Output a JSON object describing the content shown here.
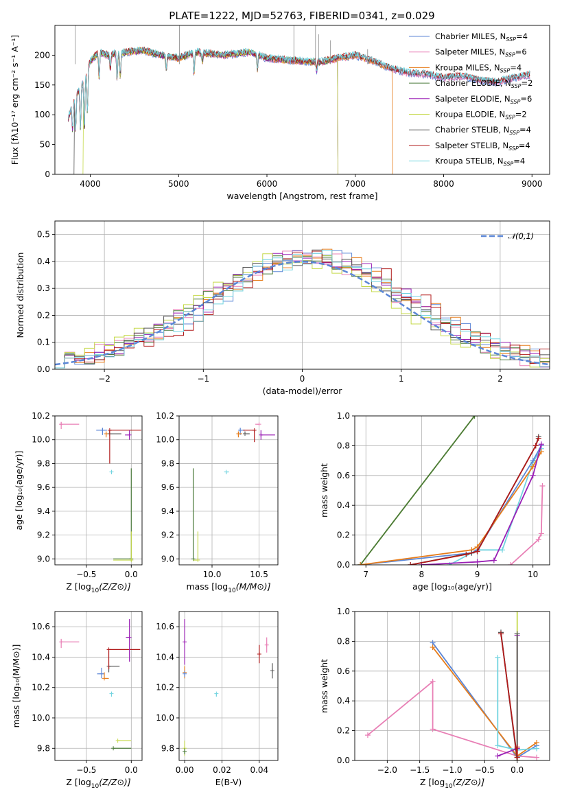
{
  "figure": {
    "title": "PLATE=1222, MJD=52763, FIBERID=0341, z=0.029"
  },
  "colors": {
    "Chabrier MILES": "#5b86d6",
    "Salpeter MILES": "#e87fb5",
    "Kroupa MILES": "#e67d1c",
    "Chabrier ELODIE": "#4a7a3a",
    "Salpeter ELODIE": "#9a1fb5",
    "Kroupa ELODIE": "#c5d94a",
    "Chabrier STELIB": "#555555",
    "Salpeter STELIB": "#b01a1a",
    "Kroupa STELIB": "#72d4e0"
  },
  "legend_spectrum": [
    {
      "model": "Chabrier MILES",
      "pre": "Chabrier MILES, N",
      "sub": "SSP",
      "post": "=4"
    },
    {
      "model": "Salpeter MILES",
      "pre": "Salpeter MILES, N",
      "sub": "SSP",
      "post": "=6"
    },
    {
      "model": "Kroupa MILES",
      "pre": "Kroupa MILES, N",
      "sub": "SSP",
      "post": "=4"
    },
    {
      "model": "Chabrier ELODIE",
      "pre": "Chabrier ELODIE, N",
      "sub": "SSP",
      "post": "=2"
    },
    {
      "model": "Salpeter ELODIE",
      "pre": "Salpeter ELODIE, N",
      "sub": "SSP",
      "post": "=6"
    },
    {
      "model": "Kroupa ELODIE",
      "pre": "Kroupa ELODIE, N",
      "sub": "SSP",
      "post": "=2"
    },
    {
      "model": "Chabrier STELIB",
      "pre": "Chabrier STELIB, N",
      "sub": "SSP",
      "post": "=4"
    },
    {
      "model": "Salpeter STELIB",
      "pre": "Salpeter STELIB, N",
      "sub": "SSP",
      "post": "=4"
    },
    {
      "model": "Kroupa STELIB",
      "pre": "Kroupa STELIB, N",
      "sub": "SSP",
      "post": "=4"
    }
  ],
  "chart_data": [
    {
      "id": "spectrum",
      "type": "line",
      "xlabel": "wavelength [Angstrom, rest frame]",
      "ylabel": "Flux [fλ10⁻¹⁷ erg cm⁻² s⁻¹ A⁻¹]",
      "xlim": [
        3600,
        9200
      ],
      "ylim": [
        0,
        250
      ],
      "xticks": [
        4000,
        5000,
        6000,
        7000,
        8000,
        9000
      ],
      "yticks": [
        0,
        50,
        100,
        150,
        200
      ],
      "grid": false,
      "legend": "upper-right",
      "continuum_x": [
        3750,
        3800,
        3850,
        3900,
        3950,
        4000,
        4100,
        4200,
        4400,
        4600,
        4800,
        5000,
        5200,
        5500,
        5800,
        6000,
        6200,
        6400,
        6600,
        6800,
        7000,
        7200,
        7400,
        7600,
        7800,
        8000,
        8200,
        8400,
        8600,
        8800,
        9000
      ],
      "continuum_y": [
        95,
        115,
        135,
        150,
        165,
        190,
        205,
        200,
        205,
        208,
        200,
        195,
        205,
        200,
        205,
        195,
        192,
        190,
        188,
        195,
        200,
        190,
        178,
        170,
        168,
        162,
        165,
        158,
        155,
        162,
        168
      ],
      "absorption_lines": [
        {
          "wavelength": 3800,
          "depth": 40
        },
        {
          "wavelength": 3835,
          "depth": 55
        },
        {
          "wavelength": 3889,
          "depth": 70
        },
        {
          "wavelength": 3933,
          "depth": 90
        },
        {
          "wavelength": 3968,
          "depth": 70
        },
        {
          "wavelength": 4101,
          "depth": 45
        },
        {
          "wavelength": 4227,
          "depth": 25
        },
        {
          "wavelength": 4304,
          "depth": 45
        },
        {
          "wavelength": 4340,
          "depth": 40
        },
        {
          "wavelength": 4861,
          "depth": 25
        },
        {
          "wavelength": 5175,
          "depth": 35
        },
        {
          "wavelength": 5270,
          "depth": 15
        },
        {
          "wavelength": 5893,
          "depth": 25
        },
        {
          "wavelength": 6563,
          "depth": 15
        }
      ],
      "truncations": [
        {
          "model": "Chabrier STELIB",
          "from": 3750,
          "to": 3820
        },
        {
          "model": "Kroupa ELODIE",
          "from": 3750,
          "to": 3920
        },
        {
          "model": "Kroupa ELODIE",
          "from": 6800,
          "to": 9200
        },
        {
          "model": "Salpeter ELODIE",
          "from": 6800,
          "to": 9200
        },
        {
          "model": "Chabrier ELODIE",
          "from": 6800,
          "to": 9200
        },
        {
          "model": "Kroupa MILES",
          "from": 7420,
          "to": 9200
        }
      ]
    },
    {
      "id": "residuals",
      "type": "histogram",
      "xlabel": "(data-model)/error",
      "ylabel": "Normed distribution",
      "xlim": [
        -2.5,
        2.5
      ],
      "ylim": [
        0,
        0.55
      ],
      "xticks": [
        -2,
        -1,
        0,
        1,
        2
      ],
      "yticks": [
        0.0,
        0.1,
        0.2,
        0.3,
        0.4,
        0.5
      ],
      "grid": true,
      "legend": "upper-right",
      "bins": 50,
      "reference_curve": {
        "name": "𝒩(0,1)",
        "mean": 0,
        "sigma": 1,
        "style": "dashed",
        "color": "#5b86d6"
      },
      "model_shifts": {
        "Chabrier MILES": 0.15,
        "Salpeter MILES": 0.0,
        "Kroupa MILES": 0.15,
        "Chabrier ELODIE": 0.05,
        "Salpeter ELODIE": 0.1,
        "Kroupa ELODIE": -0.1,
        "Chabrier STELIB": 0.0,
        "Salpeter STELIB": 0.2,
        "Kroupa STELIB": 0.15
      }
    },
    {
      "id": "age_vs_Z",
      "type": "errorbar",
      "xlabel_pre": "Z [log",
      "xlabel_sub": "10",
      "xlabel_post": "(Z/Z⊙)]",
      "ylabel": "age  [log₁₀(age/yr)]",
      "xlim": [
        -0.85,
        0.12
      ],
      "ylim": [
        8.95,
        10.2
      ],
      "xticks": [
        -0.5,
        0.0
      ],
      "yticks": [
        9.0,
        9.2,
        9.4,
        9.6,
        9.8,
        10.0,
        10.2
      ],
      "grid": true,
      "points": [
        {
          "model": "Salpeter MILES",
          "x": -0.78,
          "y": 10.13,
          "xl": 0.02,
          "xh": 0.2,
          "yl": 0.04,
          "yh": 0.02
        },
        {
          "model": "Chabrier MILES",
          "x": -0.32,
          "y": 10.08,
          "xl": 0.07,
          "xh": 0.05,
          "yl": 0.04,
          "yh": 0.02
        },
        {
          "model": "Kroupa MILES",
          "x": -0.28,
          "y": 10.05,
          "xl": 0.0,
          "xh": 0.04,
          "yl": 0.03,
          "yh": 0.02
        },
        {
          "model": "Chabrier STELIB",
          "x": -0.24,
          "y": 10.05,
          "xl": 0.0,
          "xh": 0.13,
          "yl": 0.0,
          "yh": 0.03
        },
        {
          "model": "Salpeter STELIB",
          "x": -0.24,
          "y": 10.08,
          "xl": 0.0,
          "xh": 0.35,
          "yl": 0.28,
          "yh": 0.0
        },
        {
          "model": "Salpeter ELODIE",
          "x": -0.02,
          "y": 10.04,
          "xl": 0.05,
          "xh": 0.0,
          "yl": 0.04,
          "yh": 0.04
        },
        {
          "model": "Kroupa STELIB",
          "x": -0.22,
          "y": 9.73,
          "xl": 0.0,
          "xh": 0.0,
          "yl": 0.02,
          "yh": 0.0
        },
        {
          "model": "Chabrier ELODIE",
          "x": 0.0,
          "y": 9.0,
          "xl": 0.2,
          "xh": 0.0,
          "yl": 0.0,
          "yh": 0.76
        },
        {
          "model": "Kroupa ELODIE",
          "x": 0.0,
          "y": 8.99,
          "xl": 0.2,
          "xh": 0.0,
          "yl": 0.0,
          "yh": 0.24
        }
      ]
    },
    {
      "id": "age_vs_mass",
      "type": "errorbar",
      "xlabel_pre": "mass [log",
      "xlabel_sub": "10",
      "xlabel_post": "(M/M⊙)]",
      "xlim": [
        9.65,
        10.7
      ],
      "ylim": [
        8.95,
        10.2
      ],
      "xticks": [
        10.0,
        10.5
      ],
      "yticks": [
        9.0,
        9.2,
        9.4,
        9.6,
        9.8,
        10.0,
        10.2
      ],
      "grid": true,
      "points": [
        {
          "model": "Chabrier MILES",
          "x": 10.3,
          "y": 10.08,
          "xl": 0.02,
          "xh": 0.05,
          "yl": 0.04,
          "yh": 0.02
        },
        {
          "model": "Kroupa MILES",
          "x": 10.28,
          "y": 10.05,
          "xl": 0.0,
          "xh": 0.04,
          "yl": 0.03,
          "yh": 0.02
        },
        {
          "model": "Chabrier STELIB",
          "x": 10.35,
          "y": 10.05,
          "xl": 0.0,
          "xh": 0.05,
          "yl": 0.0,
          "yh": 0.02
        },
        {
          "model": "Salpeter STELIB",
          "x": 10.45,
          "y": 10.08,
          "xl": 0.12,
          "xh": 0.0,
          "yl": 0.1,
          "yh": 0.0
        },
        {
          "model": "Salpeter MILES",
          "x": 10.5,
          "y": 10.13,
          "xl": 0.04,
          "xh": 0.0,
          "yl": 0.0,
          "yh": 0.0
        },
        {
          "model": "Salpeter ELODIE",
          "x": 10.52,
          "y": 10.04,
          "xl": 0.0,
          "xh": 0.15,
          "yl": 0.04,
          "yh": 0.04
        },
        {
          "model": "Kroupa STELIB",
          "x": 10.15,
          "y": 9.73,
          "xl": 0.0,
          "xh": 0.03,
          "yl": 0.02,
          "yh": 0.0
        },
        {
          "model": "Chabrier ELODIE",
          "x": 9.8,
          "y": 9.0,
          "xl": 0.0,
          "xh": 0.0,
          "yl": 0.0,
          "yh": 0.76
        },
        {
          "model": "Kroupa ELODIE",
          "x": 9.85,
          "y": 8.99,
          "xl": 0.05,
          "xh": 0.0,
          "yl": 0.0,
          "yh": 0.24
        }
      ]
    },
    {
      "id": "weight_vs_age",
      "type": "line",
      "xlabel": "age  [log₁₀(age/yr)]",
      "ylabel": "mass weight",
      "xlim": [
        6.8,
        10.3
      ],
      "ylim": [
        0,
        1
      ],
      "xticks": [
        7,
        8,
        9,
        10
      ],
      "yticks": [
        0.0,
        0.2,
        0.4,
        0.6,
        0.8,
        1.0
      ],
      "grid": true,
      "series": [
        {
          "model": "Kroupa ELODIE",
          "x": [
            6.9,
            8.95
          ],
          "y": [
            0.0,
            1.0
          ]
        },
        {
          "model": "Chabrier ELODIE",
          "x": [
            6.9,
            8.95
          ],
          "y": [
            0.0,
            1.0
          ]
        },
        {
          "model": "Salpeter MILES",
          "x": [
            9.6,
            10.1,
            10.15,
            10.17
          ],
          "y": [
            0.0,
            0.17,
            0.21,
            0.53
          ]
        },
        {
          "model": "Kroupa STELIB",
          "x": [
            8.5,
            9.0,
            9.45,
            10.0,
            10.15
          ],
          "y": [
            0.0,
            0.1,
            0.1,
            0.69,
            0.78
          ]
        },
        {
          "model": "Chabrier MILES",
          "x": [
            6.9,
            8.9,
            9.0,
            10.0,
            10.15
          ],
          "y": [
            0.0,
            0.08,
            0.1,
            0.7,
            0.8
          ]
        },
        {
          "model": "Kroupa MILES",
          "x": [
            6.9,
            8.9,
            9.0,
            10.0,
            10.15
          ],
          "y": [
            0.0,
            0.1,
            0.12,
            0.66,
            0.76
          ]
        },
        {
          "model": "Salpeter ELODIE",
          "x": [
            8.0,
            9.0,
            9.3,
            10.0,
            10.15
          ],
          "y": [
            0.0,
            0.02,
            0.03,
            0.6,
            0.81
          ]
        },
        {
          "model": "Chabrier STELIB",
          "x": [
            7.8,
            8.9,
            9.0,
            10.05,
            10.1
          ],
          "y": [
            0.0,
            0.08,
            0.09,
            0.8,
            0.86
          ]
        },
        {
          "model": "Salpeter STELIB",
          "x": [
            7.8,
            8.8,
            9.0,
            10.05,
            10.1
          ],
          "y": [
            0.0,
            0.07,
            0.09,
            0.8,
            0.85
          ]
        }
      ]
    },
    {
      "id": "mass_vs_Z",
      "type": "errorbar",
      "xlabel_pre": "Z [log",
      "xlabel_sub": "10",
      "xlabel_post": "(Z/Z⊙)]",
      "ylabel": "mass [log₁₀(M/M⊙)]",
      "xlim": [
        -0.85,
        0.12
      ],
      "ylim": [
        9.72,
        10.7
      ],
      "xticks": [
        -0.5,
        0.0
      ],
      "yticks": [
        9.8,
        10.0,
        10.2,
        10.4,
        10.6
      ],
      "grid": true,
      "points": [
        {
          "model": "Salpeter MILES",
          "x": -0.78,
          "y": 10.5,
          "xl": 0.0,
          "xh": 0.2,
          "yl": 0.04,
          "yh": 0.02
        },
        {
          "model": "Chabrier MILES",
          "x": -0.33,
          "y": 10.29,
          "xl": 0.05,
          "xh": 0.03,
          "yl": 0.03,
          "yh": 0.04
        },
        {
          "model": "Kroupa MILES",
          "x": -0.3,
          "y": 10.26,
          "xl": 0.0,
          "xh": 0.05,
          "yl": 0.0,
          "yh": 0.04
        },
        {
          "model": "Chabrier STELIB",
          "x": -0.25,
          "y": 10.34,
          "xl": 0.0,
          "xh": 0.12,
          "yl": 0.04,
          "yh": 0.0
        },
        {
          "model": "Salpeter STELIB",
          "x": -0.25,
          "y": 10.45,
          "xl": 0.0,
          "xh": 0.35,
          "yl": 0.13,
          "yh": 0.0
        },
        {
          "model": "Salpeter ELODIE",
          "x": -0.02,
          "y": 10.53,
          "xl": 0.04,
          "xh": 0.0,
          "yl": 0.16,
          "yh": 0.12
        },
        {
          "model": "Kroupa STELIB",
          "x": -0.22,
          "y": 10.16,
          "xl": 0.0,
          "xh": 0.0,
          "yl": 0.02,
          "yh": 0.0
        },
        {
          "model": "Kroupa ELODIE",
          "x": -0.15,
          "y": 9.85,
          "xl": 0.0,
          "xh": 0.15,
          "yl": 0.0,
          "yh": 0.0
        },
        {
          "model": "Chabrier ELODIE",
          "x": -0.2,
          "y": 9.8,
          "xl": 0.0,
          "xh": 0.2,
          "yl": 0.0,
          "yh": 0.0
        }
      ]
    },
    {
      "id": "mass_vs_ebv",
      "type": "errorbar",
      "xlabel": "E(B-V)",
      "xlim": [
        -0.003,
        0.05
      ],
      "ylim": [
        9.72,
        10.7
      ],
      "xticks": [
        0.0,
        0.02,
        0.04
      ],
      "yticks": [
        9.8,
        10.0,
        10.2,
        10.4,
        10.6
      ],
      "grid": true,
      "points": [
        {
          "model": "Salpeter ELODIE",
          "x": 0.0,
          "y": 10.5,
          "xl": 0.0,
          "xh": 0.0,
          "yl": 0.15,
          "yh": 0.15
        },
        {
          "model": "Kroupa MILES",
          "x": 0.0,
          "y": 10.3,
          "xl": 0.0,
          "xh": 0.0,
          "yl": 0.04,
          "yh": 0.04
        },
        {
          "model": "Chabrier MILES",
          "x": 0.0,
          "y": 10.29,
          "xl": 0.0,
          "xh": 0.0,
          "yl": 0.02,
          "yh": 0.02
        },
        {
          "model": "Kroupa ELODIE",
          "x": 0.0,
          "y": 9.8,
          "xl": 0.0,
          "xh": 0.0,
          "yl": 0.05,
          "yh": 0.05
        },
        {
          "model": "Chabrier ELODIE",
          "x": 0.0,
          "y": 9.78,
          "xl": 0.0,
          "xh": 0.0,
          "yl": 0.02,
          "yh": 0.02
        },
        {
          "model": "Kroupa STELIB",
          "x": 0.017,
          "y": 10.16,
          "xl": 0.0,
          "xh": 0.0,
          "yl": 0.02,
          "yh": 0.0
        },
        {
          "model": "Salpeter STELIB",
          "x": 0.04,
          "y": 10.42,
          "xl": 0.0,
          "xh": 0.0,
          "yl": 0.06,
          "yh": 0.06
        },
        {
          "model": "Salpeter MILES",
          "x": 0.044,
          "y": 10.48,
          "xl": 0.0,
          "xh": 0.0,
          "yl": 0.05,
          "yh": 0.05
        },
        {
          "model": "Chabrier STELIB",
          "x": 0.047,
          "y": 10.31,
          "xl": 0.0,
          "xh": 0.0,
          "yl": 0.05,
          "yh": 0.05
        }
      ]
    },
    {
      "id": "weight_vs_Z",
      "type": "line",
      "xlabel_pre": "Z [log",
      "xlabel_sub": "10",
      "xlabel_post": "(Z/Z⊙)]",
      "ylabel": "mass weight",
      "xlim": [
        -2.5,
        0.5
      ],
      "ylim": [
        0,
        1
      ],
      "xticks": [
        -2.0,
        -1.5,
        -1.0,
        -0.5,
        0.0
      ],
      "yticks": [
        0.0,
        0.2,
        0.4,
        0.6,
        0.8,
        1.0
      ],
      "grid": true,
      "series": [
        {
          "model": "Salpeter MILES",
          "x": [
            -2.3,
            -1.3,
            -1.3,
            0.0,
            0.3
          ],
          "y": [
            0.17,
            0.53,
            0.21,
            0.03,
            0.02
          ]
        },
        {
          "model": "Chabrier MILES",
          "x": [
            -1.3,
            0.0,
            0.3
          ],
          "y": [
            0.79,
            0.02,
            0.1
          ]
        },
        {
          "model": "Kroupa MILES",
          "x": [
            -1.3,
            0.0,
            0.3
          ],
          "y": [
            0.76,
            0.03,
            0.12
          ]
        },
        {
          "model": "Kroupa STELIB",
          "x": [
            -0.3,
            -0.3,
            0.0,
            0.3
          ],
          "y": [
            0.69,
            0.1,
            0.07,
            0.08
          ]
        },
        {
          "model": "Salpeter ELODIE",
          "x": [
            -0.3,
            0.0,
            0.0
          ],
          "y": [
            0.03,
            0.08,
            0.84
          ]
        },
        {
          "model": "Kroupa ELODIE",
          "x": [
            0.0,
            0.0
          ],
          "y": [
            0.0,
            1.0
          ]
        },
        {
          "model": "Chabrier STELIB",
          "x": [
            -0.25,
            0.0,
            0.0
          ],
          "y": [
            0.86,
            0.0,
            0.85
          ]
        },
        {
          "model": "Salpeter STELIB",
          "x": [
            -0.25,
            0.0,
            0.0
          ],
          "y": [
            0.85,
            0.02,
            0.09
          ]
        }
      ]
    }
  ]
}
